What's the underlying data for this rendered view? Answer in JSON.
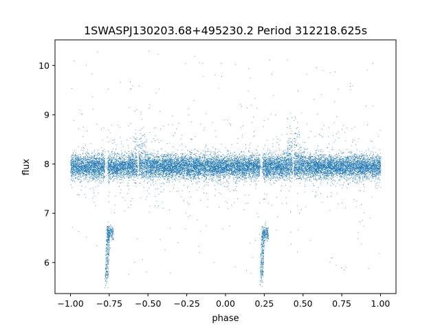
{
  "chart_data": {
    "type": "scatter",
    "title": "1SWASPJ130203.68+495230.2 Period 312218.625s",
    "xlabel": "phase",
    "ylabel": "flux",
    "xlim": [
      -1.1,
      1.1
    ],
    "ylim": [
      5.37,
      10.52
    ],
    "xticks": [
      -1.0,
      -0.75,
      -0.5,
      -0.25,
      0.0,
      0.25,
      0.5,
      0.75,
      1.0
    ],
    "xtick_labels": [
      "−1.00",
      "−0.75",
      "−0.50",
      "−0.25",
      "0.00",
      "0.25",
      "0.50",
      "0.75",
      "1.00"
    ],
    "yticks": [
      6,
      7,
      8,
      9,
      10
    ],
    "ytick_labels": [
      "6",
      "7",
      "8",
      "9",
      "10"
    ],
    "grid": false,
    "marker_color": "#1f77b4",
    "series": [
      {
        "phase_range": [
          -1.0,
          1.0
        ],
        "baseline_flux": 7.95,
        "baseline_scatter": 0.12,
        "eclipse_phase": [
          -0.77,
          0.23
        ],
        "eclipse_min_flux": 5.65,
        "eclipse_shelf_flux": 6.6,
        "flare_phases": [
          -0.55,
          0.44
        ],
        "flare_max_flux": 9.3,
        "data_gaps": [
          -0.78,
          0.22
        ],
        "point_count": 16000
      }
    ]
  }
}
